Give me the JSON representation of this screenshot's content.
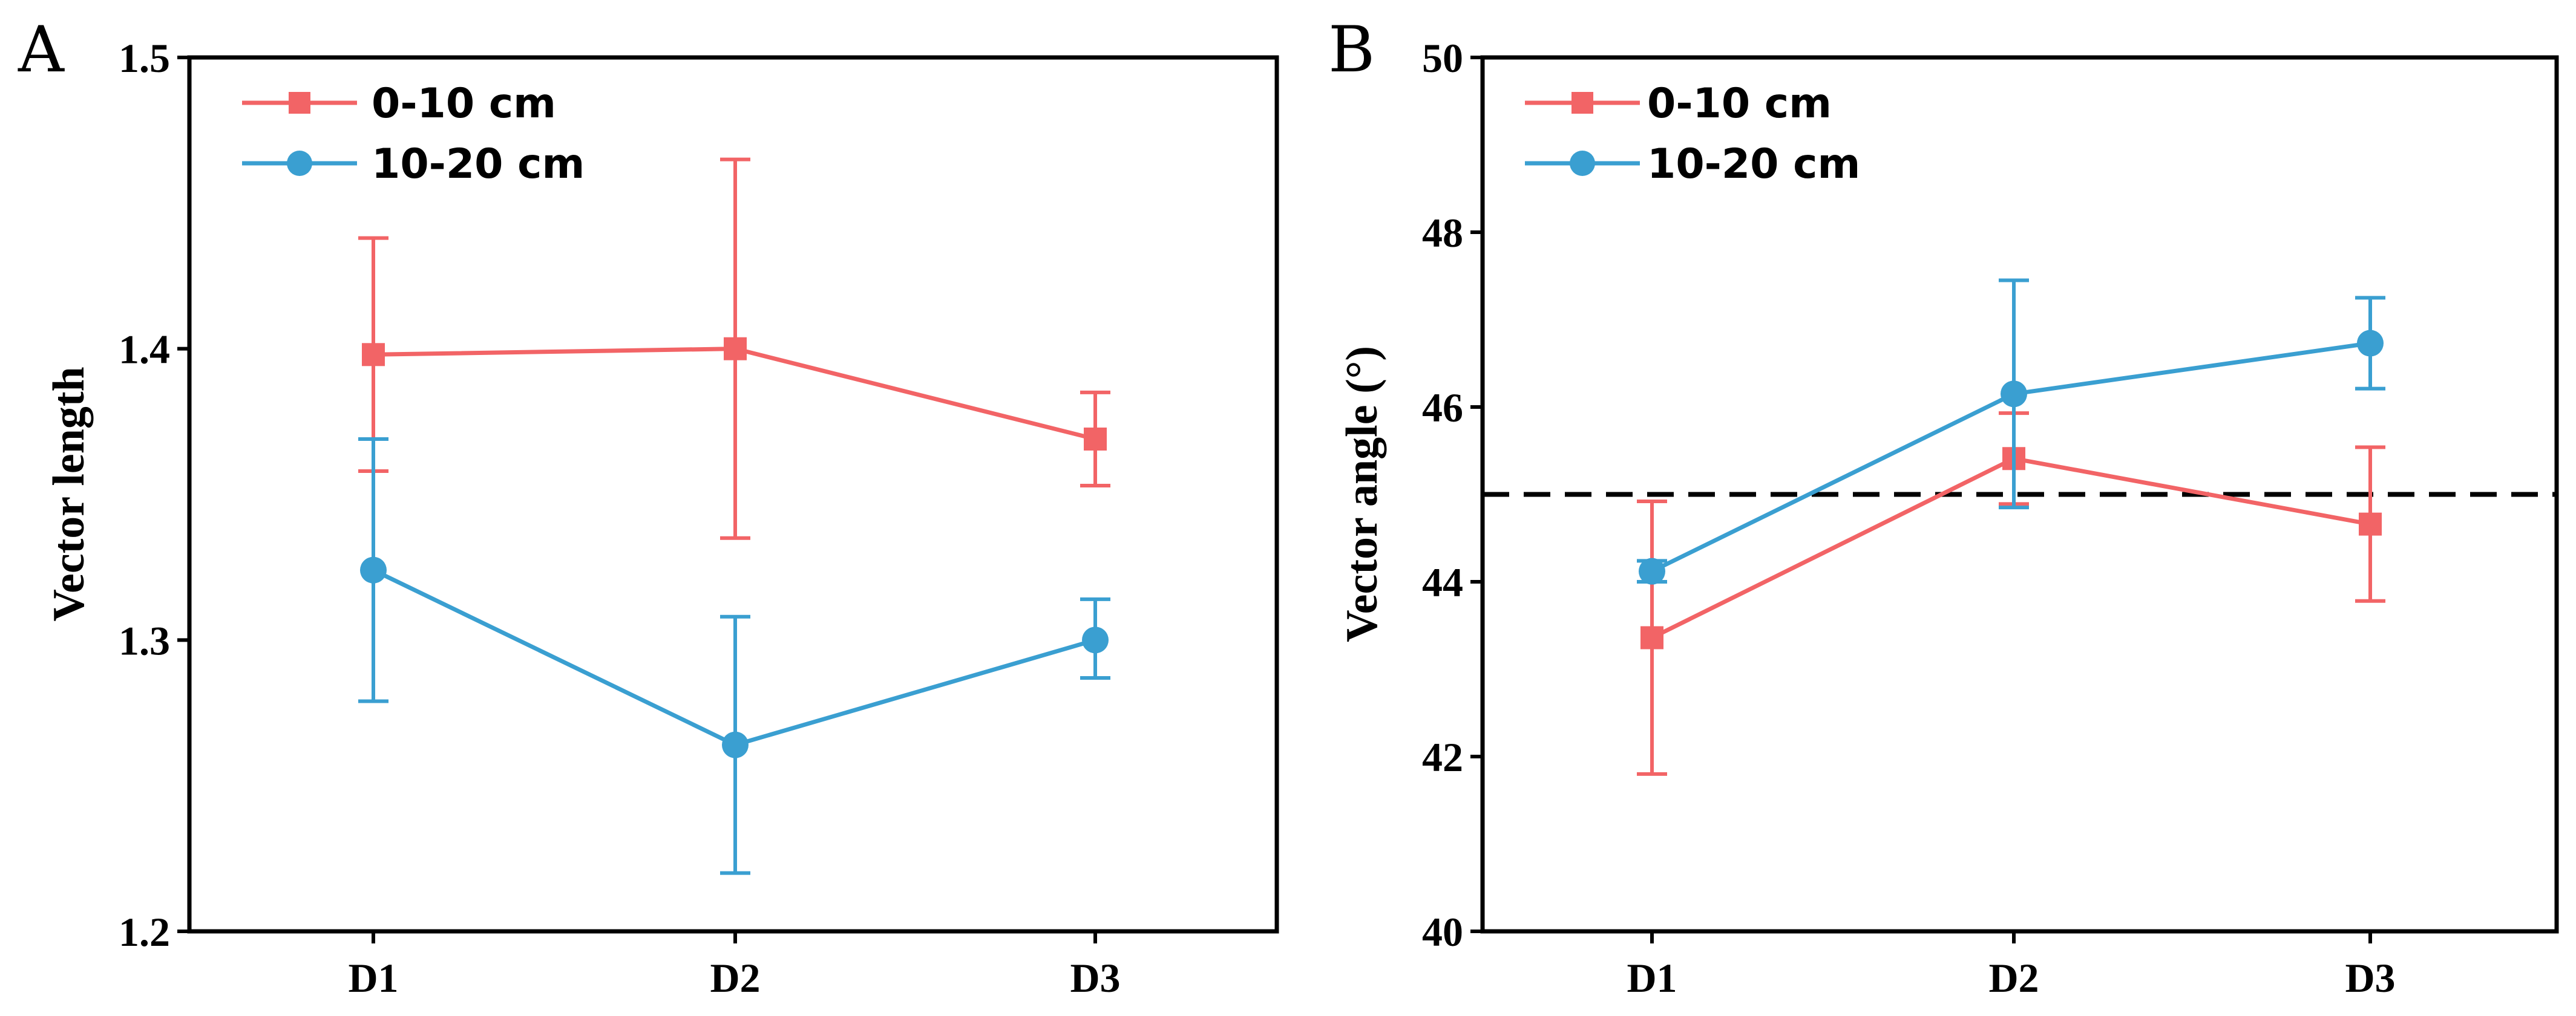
{
  "colors": {
    "series_0_10": "#f26466",
    "series_10_20": "#3a9fd1",
    "axis": "#000000",
    "reference_line": "#000000"
  },
  "chart_data": [
    {
      "panel": "A",
      "type": "line",
      "title": "",
      "xlabel": "",
      "ylabel": "Vector length",
      "categories": [
        "D1",
        "D2",
        "D3"
      ],
      "ylim": [
        1.2,
        1.5
      ],
      "yticks": [
        1.2,
        1.3,
        1.4,
        1.5
      ],
      "ytick_labels": [
        "1.2",
        "1.3",
        "1.4",
        "1.5"
      ],
      "legend_position": "top-left",
      "series": [
        {
          "name": "0-10 cm",
          "marker": "square",
          "color": "#f26466",
          "values": [
            1.398,
            1.4,
            1.369
          ],
          "err_upper": [
            1.438,
            1.465,
            1.385
          ],
          "err_lower": [
            1.358,
            1.335,
            1.353
          ]
        },
        {
          "name": "10-20 cm",
          "marker": "circle",
          "color": "#3a9fd1",
          "values": [
            1.324,
            1.264,
            1.3
          ],
          "err_upper": [
            1.369,
            1.308,
            1.314
          ],
          "err_lower": [
            1.279,
            1.22,
            1.287
          ]
        }
      ]
    },
    {
      "panel": "B",
      "type": "line",
      "title": "",
      "xlabel": "",
      "ylabel": "Vector angle (°)",
      "categories": [
        "D1",
        "D2",
        "D3"
      ],
      "ylim": [
        40,
        50
      ],
      "yticks": [
        40,
        42,
        44,
        46,
        48,
        50
      ],
      "ytick_labels": [
        "40",
        "42",
        "44",
        "46",
        "48",
        "50"
      ],
      "reference_line": {
        "y": 45,
        "style": "dashed"
      },
      "legend_position": "top-left",
      "series": [
        {
          "name": "0-10 cm",
          "marker": "square",
          "color": "#f26466",
          "values": [
            43.36,
            45.41,
            44.66
          ],
          "err_upper": [
            44.92,
            45.93,
            45.54
          ],
          "err_lower": [
            41.8,
            44.89,
            43.78
          ]
        },
        {
          "name": "10-20 cm",
          "marker": "circle",
          "color": "#3a9fd1",
          "values": [
            44.12,
            46.15,
            46.73
          ],
          "err_upper": [
            44.24,
            47.45,
            47.25
          ],
          "err_lower": [
            44.0,
            44.85,
            46.21
          ]
        }
      ]
    }
  ]
}
